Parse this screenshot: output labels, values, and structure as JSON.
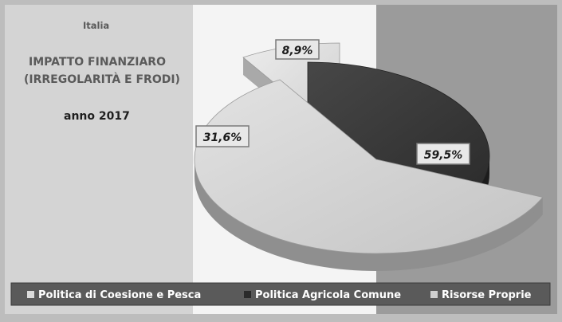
{
  "chart_data": {
    "type": "pie",
    "title_country": "Italia",
    "title_line1": "IMPATTO FINANZIARO",
    "title_line2": "(IRREGOLARITÀ E FRODI)",
    "subtitle": "anno 2017",
    "categories": [
      "Politica di Coesione e Pesca",
      "Politica Agricola Comune",
      "Risorse Proprie"
    ],
    "values": [
      8.9,
      31.6,
      59.5
    ],
    "data_labels": [
      "8,9%",
      "31,6%",
      "59,5%"
    ],
    "legend_placement": "bottom",
    "three_d": true,
    "exploded": true
  },
  "colors": {
    "coesione": "#dadada",
    "agricola": "#3b3b3b",
    "risorse": "#cfcfcf",
    "band_left": "#d4d4d4",
    "band_middle": "#f4f4f4",
    "band_right": "#9b9b9b",
    "legend_bar": "#5a5a5a"
  }
}
